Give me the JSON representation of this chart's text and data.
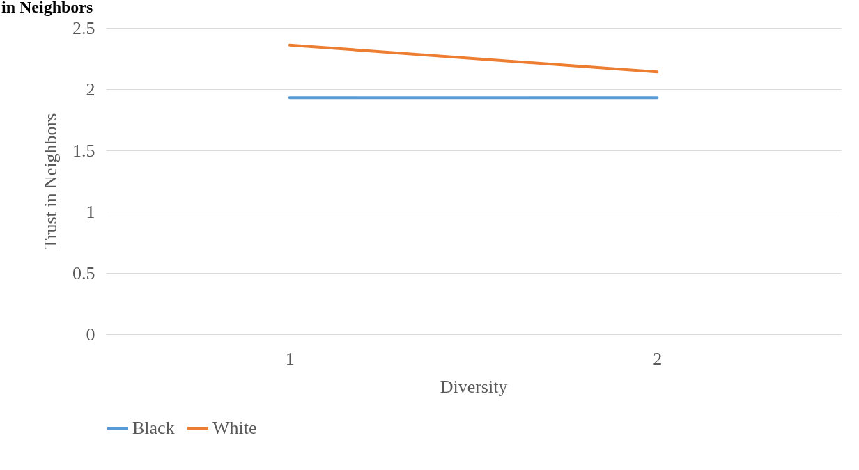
{
  "chart_data": {
    "type": "line",
    "title": "in Neighbors",
    "xlabel": "Diversity",
    "ylabel": "Trust in Neighbors",
    "categories": [
      "1",
      "2"
    ],
    "series": [
      {
        "name": "Black",
        "color": "#5b9bd5",
        "values": [
          1.93,
          1.93
        ]
      },
      {
        "name": "White",
        "color": "#ed7d31",
        "values": [
          2.36,
          2.14
        ]
      }
    ],
    "ylim": [
      0,
      2.5
    ],
    "yticks": [
      0,
      0.5,
      1,
      1.5,
      2,
      2.5
    ],
    "grid": "y",
    "legend": "bottom",
    "marker": "none",
    "line_style": "solid"
  }
}
